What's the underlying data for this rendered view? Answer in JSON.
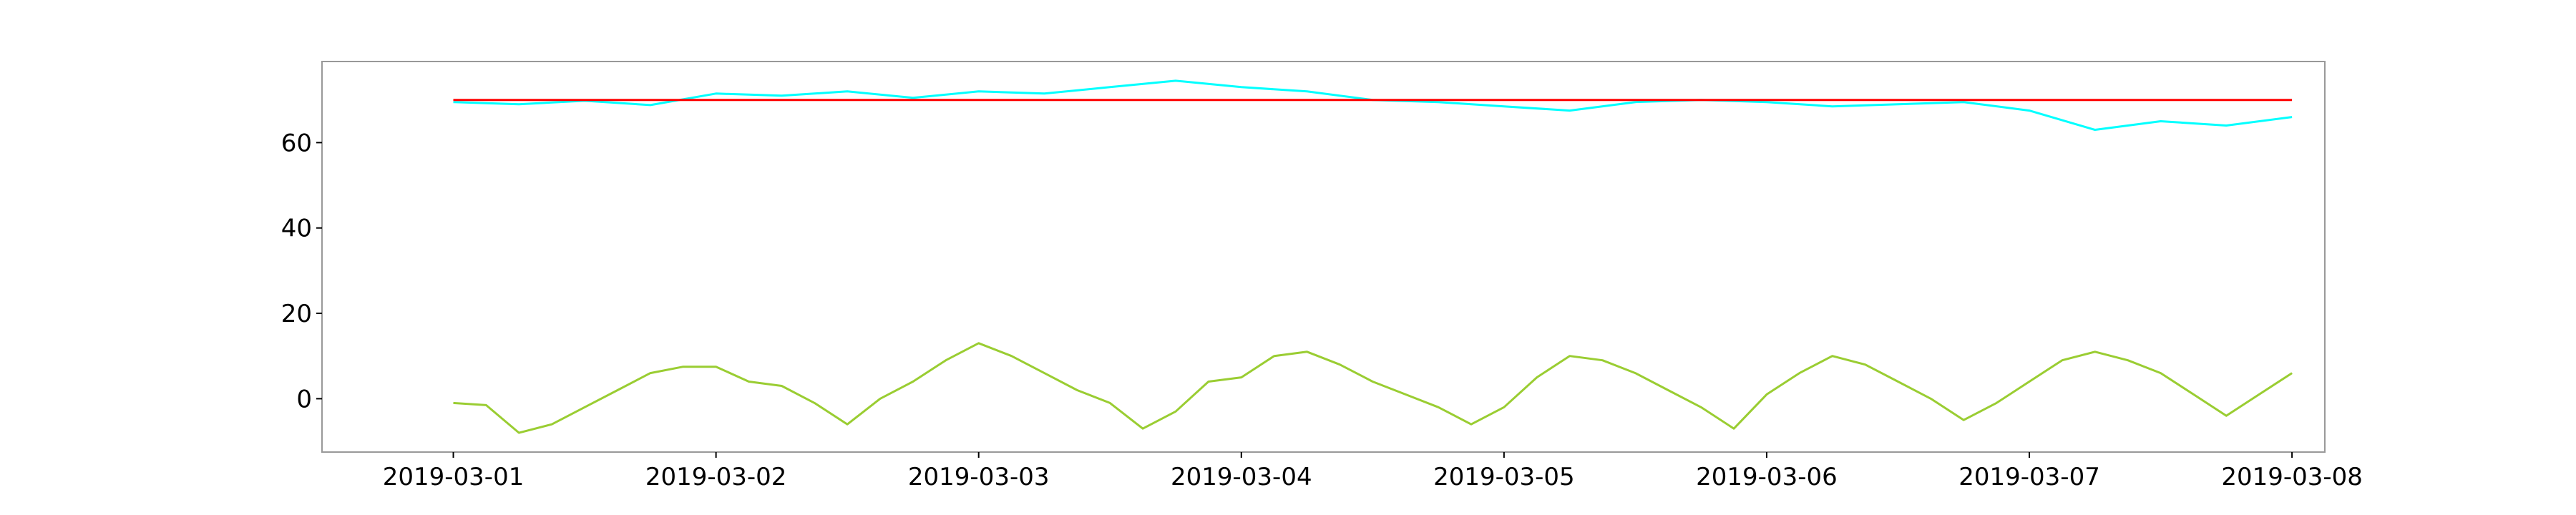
{
  "chart_data": {
    "type": "line",
    "title": "",
    "xlabel": "",
    "ylabel": "",
    "x_ticks": [
      "2019-03-01",
      "2019-03-02",
      "2019-03-03",
      "2019-03-04",
      "2019-03-05",
      "2019-03-06",
      "2019-03-07",
      "2019-03-08"
    ],
    "y_ticks": [
      0,
      20,
      40,
      60
    ],
    "xlim": [
      "2019-02-28T12:00",
      "2019-03-08T03:00"
    ],
    "ylim": [
      -12.5,
      79
    ],
    "grid": false,
    "legend": "none",
    "series": [
      {
        "color": "#00ffff",
        "x": [
          "2019-03-01T00:00",
          "2019-03-01T06:00",
          "2019-03-01T12:00",
          "2019-03-01T18:00",
          "2019-03-02T00:00",
          "2019-03-02T06:00",
          "2019-03-02T12:00",
          "2019-03-02T18:00",
          "2019-03-03T00:00",
          "2019-03-03T06:00",
          "2019-03-03T12:00",
          "2019-03-03T18:00",
          "2019-03-04T00:00",
          "2019-03-04T06:00",
          "2019-03-04T12:00",
          "2019-03-04T18:00",
          "2019-03-05T00:00",
          "2019-03-05T06:00",
          "2019-03-05T12:00",
          "2019-03-05T18:00",
          "2019-03-06T00:00",
          "2019-03-06T06:00",
          "2019-03-06T12:00",
          "2019-03-06T18:00",
          "2019-03-07T00:00",
          "2019-03-07T06:00",
          "2019-03-07T12:00",
          "2019-03-07T18:00",
          "2019-03-08T00:00"
        ],
        "values": [
          69.5,
          69.0,
          69.8,
          68.8,
          71.5,
          71.0,
          72.0,
          70.5,
          72.0,
          71.5,
          73.0,
          74.5,
          73.0,
          72.0,
          70.0,
          69.5,
          68.5,
          67.5,
          69.5,
          70.0,
          69.5,
          68.5,
          69.0,
          69.5,
          67.5,
          63.0,
          65.0,
          64.0,
          66.0
        ]
      },
      {
        "color": "#ff0000",
        "x": [
          "2019-03-01T00:00",
          "2019-03-08T00:00"
        ],
        "values": [
          70.0,
          70.0
        ]
      },
      {
        "color": "#9acd32",
        "x": [
          "2019-03-01T00:00",
          "2019-03-01T03:00",
          "2019-03-01T06:00",
          "2019-03-01T09:00",
          "2019-03-01T12:00",
          "2019-03-01T15:00",
          "2019-03-01T18:00",
          "2019-03-01T21:00",
          "2019-03-02T00:00",
          "2019-03-02T03:00",
          "2019-03-02T06:00",
          "2019-03-02T09:00",
          "2019-03-02T12:00",
          "2019-03-02T15:00",
          "2019-03-02T18:00",
          "2019-03-02T21:00",
          "2019-03-03T00:00",
          "2019-03-03T03:00",
          "2019-03-03T06:00",
          "2019-03-03T09:00",
          "2019-03-03T12:00",
          "2019-03-03T15:00",
          "2019-03-03T18:00",
          "2019-03-03T21:00",
          "2019-03-04T00:00",
          "2019-03-04T03:00",
          "2019-03-04T06:00",
          "2019-03-04T09:00",
          "2019-03-04T12:00",
          "2019-03-04T15:00",
          "2019-03-04T18:00",
          "2019-03-04T21:00",
          "2019-03-05T00:00",
          "2019-03-05T03:00",
          "2019-03-05T06:00",
          "2019-03-05T09:00",
          "2019-03-05T12:00",
          "2019-03-05T15:00",
          "2019-03-05T18:00",
          "2019-03-05T21:00",
          "2019-03-06T00:00",
          "2019-03-06T03:00",
          "2019-03-06T06:00",
          "2019-03-06T09:00",
          "2019-03-06T12:00",
          "2019-03-06T15:00",
          "2019-03-06T18:00",
          "2019-03-06T21:00",
          "2019-03-07T00:00",
          "2019-03-07T03:00",
          "2019-03-07T06:00",
          "2019-03-07T09:00",
          "2019-03-07T12:00",
          "2019-03-07T15:00",
          "2019-03-07T18:00",
          "2019-03-07T21:00",
          "2019-03-08T00:00"
        ],
        "values": [
          -1.0,
          -1.5,
          -8.0,
          -6.0,
          -2.0,
          2.0,
          6.0,
          7.5,
          7.5,
          4.0,
          3.0,
          -1.0,
          -6.0,
          0.0,
          4.0,
          9.0,
          13.0,
          10.0,
          6.0,
          2.0,
          -1.0,
          -7.0,
          -3.0,
          4.0,
          5.0,
          10.0,
          11.0,
          8.0,
          4.0,
          1.0,
          -2.0,
          -6.0,
          -2.0,
          5.0,
          10.0,
          9.0,
          6.0,
          2.0,
          -2.0,
          -7.0,
          1.0,
          6.0,
          10.0,
          8.0,
          4.0,
          0.0,
          -5.0,
          -1.0,
          4.0,
          9.0,
          11.0,
          9.0,
          6.0,
          1.0,
          -4.0,
          1.0,
          6.0
        ]
      }
    ]
  }
}
